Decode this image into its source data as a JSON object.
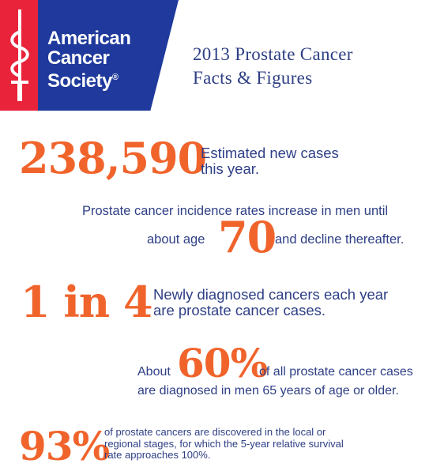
{
  "logo": {
    "line1": "American",
    "line2": "Cancer",
    "line3": "Society",
    "registered": "®"
  },
  "title": {
    "line1": "2013 Prostate Cancer",
    "line2": "Facts & Figures"
  },
  "fact1": {
    "number": "238,590",
    "text_line1": "Estimated new cases",
    "text_line2": "this year."
  },
  "fact2": {
    "line1": "Prostate cancer incidence rates increase in men until",
    "pre": "about age",
    "number": "70",
    "post": "and decline thereafter."
  },
  "fact3": {
    "number": "1 in 4",
    "text_line1": "Newly diagnosed cancers each year",
    "text_line2": "are prostate cancer cases."
  },
  "fact4": {
    "pre": "About",
    "number": "60%",
    "post": "of all prostate cancer cases",
    "line2": "are diagnosed in men 65 years of age or older."
  },
  "fact5": {
    "number": "93%",
    "text_line1": "of prostate cancers are discovered in the local or",
    "text_line2": "regional stages, for which the 5-year relative survival",
    "text_line3": "rate approaches 100%."
  },
  "colors": {
    "accent_orange": "#f0642c",
    "navy_text": "#2e3f85",
    "logo_blue": "#1f3a9c",
    "logo_red": "#e8233a"
  }
}
